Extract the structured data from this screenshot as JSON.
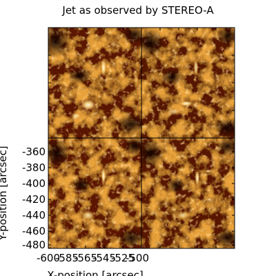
{
  "title": "Jet as observed by STEREO-A",
  "axes": {
    "xlabel": "X-position [arcsec]",
    "ylabel": "Y-position [arcsec]",
    "y_ticks": [
      "-360",
      "-380",
      "-400",
      "-420",
      "-440",
      "-460",
      "-480"
    ],
    "x_ticks": [
      "-600",
      "-585",
      "-565",
      "-545",
      "-525",
      "-500"
    ]
  },
  "panels": [
    {
      "name": "top-left"
    },
    {
      "name": "top-right"
    },
    {
      "name": "bottom-left"
    },
    {
      "name": "bottom-right"
    }
  ],
  "colors": {
    "colormap_dark": "#1a0400",
    "colormap_mid": "#9a3a00",
    "colormap_bright": "#f6d27a",
    "colormap_white": "#fff6dc"
  }
}
